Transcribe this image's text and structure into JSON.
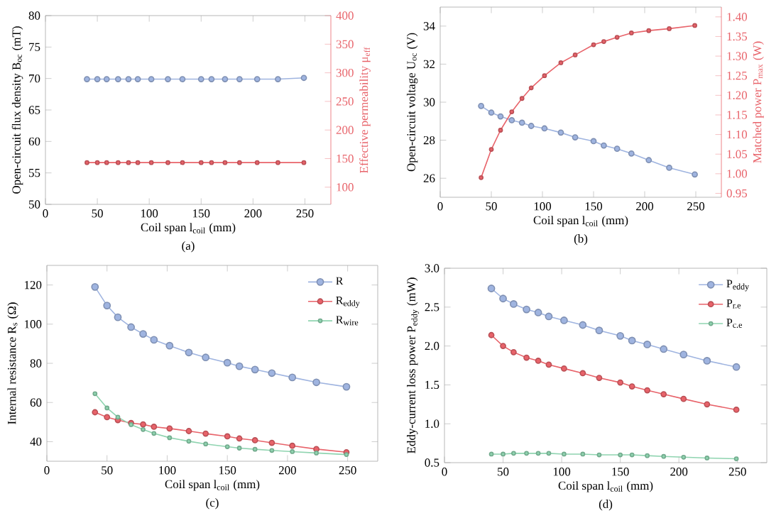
{
  "chart_data": [
    {
      "type": "line",
      "xlabel": "Coil span  l$_{coil}$ (mm)",
      "ylabel": "Open-circuit flux density  B$_{oc}$ (mT)",
      "y2label": "Effective permeability  μ$_{eff}$",
      "annotations": [
        "(a)"
      ],
      "xlim": [
        0,
        275
      ],
      "xticks": [
        0,
        50,
        100,
        150,
        200,
        250
      ],
      "ylim": [
        50,
        80
      ],
      "yticks": [
        50,
        55,
        60,
        65,
        70,
        75,
        80
      ],
      "y2lim": [
        70,
        400
      ],
      "y2ticks": [
        100,
        150,
        200,
        250,
        300,
        350,
        400
      ],
      "marker": "circle",
      "grid": false,
      "legend": false,
      "x": [
        40,
        50,
        59,
        70,
        80,
        89,
        102,
        118,
        132,
        150,
        160,
        173,
        187,
        204,
        224,
        249
      ],
      "series": [
        {
          "color": "#9fb4e0",
          "values": [
            69.9,
            69.9,
            69.9,
            69.9,
            69.9,
            69.9,
            69.9,
            69.9,
            69.9,
            69.9,
            69.9,
            69.9,
            69.9,
            69.9,
            69.9,
            70.1
          ]
        },
        {
          "color": "#e8636a",
          "axis": "y2",
          "values": [
            143,
            143,
            143,
            143,
            143,
            143,
            143,
            143,
            143,
            143,
            143,
            143,
            143,
            143,
            143,
            143
          ]
        }
      ]
    },
    {
      "type": "line",
      "xlabel": "Coil span  l$_{coil}$ (mm)",
      "ylabel": "Open-circuit voltage  U$_{oc}$ (V)",
      "y2label": "Matched power  P$_{max}$ (W)",
      "annotations": [
        "(b)"
      ],
      "xlim": [
        0,
        275
      ],
      "xticks": [
        0,
        50,
        100,
        150,
        200,
        250
      ],
      "ylim": [
        25,
        35
      ],
      "yticks": [
        26,
        28,
        30,
        32,
        34
      ],
      "y2lim": [
        0.94,
        1.425
      ],
      "y2ticks": [
        {
          "value": 0.95,
          "label": "0.95"
        },
        {
          "value": 1.0,
          "label": "1.00"
        },
        {
          "value": 1.05,
          "label": "1.05"
        },
        {
          "value": 1.1,
          "label": "1.10"
        },
        {
          "value": 1.15,
          "label": "1.15"
        },
        {
          "value": 1.2,
          "label": "1.20"
        },
        {
          "value": 1.25,
          "label": "1.25"
        },
        {
          "value": 1.3,
          "label": "1.30"
        },
        {
          "value": 1.35,
          "label": "1.35"
        },
        {
          "value": 1.4,
          "label": "1.40"
        }
      ],
      "marker": "circle",
      "grid": false,
      "legend": false,
      "x": [
        40,
        50,
        59,
        70,
        80,
        89,
        102,
        118,
        132,
        150,
        160,
        173,
        187,
        204,
        224,
        249
      ],
      "series": [
        {
          "color": "#9fb4e0",
          "values": [
            29.8,
            29.45,
            29.25,
            29.05,
            28.92,
            28.75,
            28.62,
            28.4,
            28.15,
            27.95,
            27.72,
            27.55,
            27.3,
            26.95,
            26.55,
            26.2
          ]
        },
        {
          "color": "#e8636a",
          "axis": "y2",
          "values": [
            0.99,
            1.062,
            1.111,
            1.158,
            1.192,
            1.219,
            1.25,
            1.283,
            1.303,
            1.329,
            1.337,
            1.348,
            1.359,
            1.365,
            1.37,
            1.378
          ]
        }
      ]
    },
    {
      "type": "line",
      "xlabel": "Coil span  l$_{coil}$ (mm)",
      "ylabel": "Internal resistance  R$_{s}$ (Ω)",
      "annotations": [
        "(c)"
      ],
      "xlim": [
        0,
        275
      ],
      "xticks": [
        0,
        50,
        100,
        150,
        200,
        250
      ],
      "ylim": [
        30,
        130
      ],
      "yticks": [
        40,
        60,
        80,
        100,
        120
      ],
      "marker": "circle",
      "grid": false,
      "legend": "top right",
      "x": [
        40,
        50,
        59,
        70,
        80,
        89,
        102,
        118,
        132,
        150,
        160,
        173,
        187,
        204,
        224,
        249
      ],
      "series": [
        {
          "name": "R",
          "color": "#9fb4e0",
          "values": [
            119,
            109.5,
            103.5,
            98.5,
            95,
            92,
            89,
            85.5,
            83,
            80.3,
            78.5,
            76.8,
            75,
            72.8,
            70.3,
            68
          ]
        },
        {
          "name": "R$_{eddy}$",
          "color": "#e8636a",
          "values": [
            55,
            52.5,
            51,
            49.5,
            48.8,
            47.6,
            46.7,
            45.4,
            44.1,
            42.7,
            41.6,
            40.7,
            39.4,
            37.9,
            36.2,
            34.6
          ]
        },
        {
          "name": "R$_{wire}$",
          "color": "#8fd4b0",
          "values": [
            64.5,
            57.2,
            52.5,
            48.7,
            46.2,
            44.2,
            42,
            40.2,
            38.8,
            37.4,
            36.7,
            36.1,
            35.5,
            34.9,
            34.2,
            33.4
          ]
        }
      ]
    },
    {
      "type": "line",
      "xlabel": "Coil span  l$_{coil}$ (mm)",
      "ylabel": "Eddy-current loss power  P$_{eddy}$ (mW)",
      "annotations": [
        "(d)"
      ],
      "xlim": [
        0,
        275
      ],
      "xticks": [
        0,
        50,
        100,
        150,
        200,
        250
      ],
      "ylim": [
        0.5,
        3.0
      ],
      "yticks": [
        {
          "value": 0.5,
          "label": "0.5"
        },
        {
          "value": 1.0,
          "label": "1.0"
        },
        {
          "value": 1.5,
          "label": "1.5"
        },
        {
          "value": 2.0,
          "label": "2.0"
        },
        {
          "value": 2.5,
          "label": "2.5"
        },
        {
          "value": 3.0,
          "label": "3.0"
        }
      ],
      "marker": "circle",
      "grid": false,
      "legend": "top right",
      "x": [
        40,
        50,
        59,
        70,
        80,
        89,
        102,
        118,
        132,
        150,
        160,
        173,
        187,
        204,
        224,
        249
      ],
      "series": [
        {
          "name": "P$_{eddy}$",
          "color": "#9fb4e0",
          "values": [
            2.74,
            2.61,
            2.54,
            2.47,
            2.43,
            2.38,
            2.33,
            2.27,
            2.2,
            2.13,
            2.07,
            2.02,
            1.96,
            1.89,
            1.81,
            1.73
          ]
        },
        {
          "name": "P$_{r.e}$",
          "color": "#e8636a",
          "values": [
            2.14,
            2.0,
            1.92,
            1.85,
            1.81,
            1.76,
            1.71,
            1.65,
            1.59,
            1.53,
            1.48,
            1.43,
            1.38,
            1.32,
            1.25,
            1.18
          ]
        },
        {
          "name": "P$_{c.e}$",
          "color": "#8fd4b0",
          "values": [
            0.61,
            0.61,
            0.62,
            0.62,
            0.62,
            0.62,
            0.61,
            0.61,
            0.6,
            0.6,
            0.6,
            0.59,
            0.58,
            0.57,
            0.56,
            0.55
          ]
        }
      ]
    }
  ]
}
